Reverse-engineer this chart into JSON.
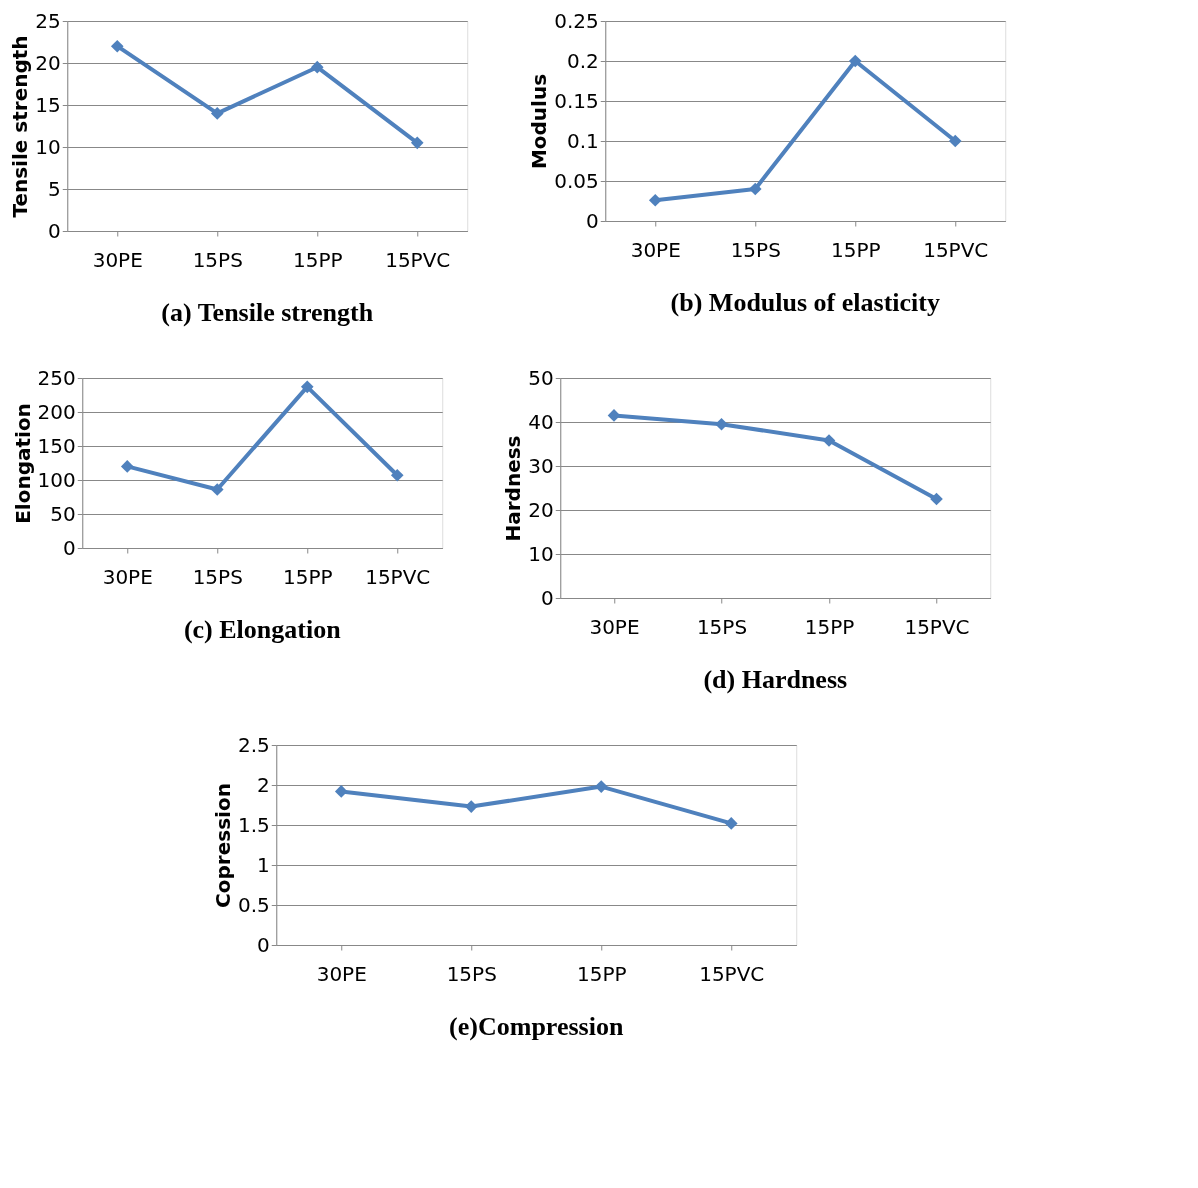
{
  "chart_data": [
    {
      "type": "line",
      "title": "(a) Tensile strength",
      "ylabel": "Tensile strength",
      "categories": [
        "30PE",
        "15PS",
        "15PP",
        "15PVC"
      ],
      "series": [
        {
          "color": "#4f81bd",
          "values": [
            22,
            14,
            19.5,
            10.5
          ]
        }
      ],
      "ylim": [
        0,
        25
      ],
      "yticks": [
        0,
        5,
        10,
        15,
        20,
        25
      ],
      "grid": "y",
      "marker": "diamond"
    },
    {
      "type": "line",
      "title": "(b) Modulus of elasticity",
      "ylabel": "Modulus",
      "categories": [
        "30PE",
        "15PS",
        "15PP",
        "15PVC"
      ],
      "series": [
        {
          "color": "#4f81bd",
          "values": [
            0.026,
            0.04,
            0.2,
            0.1
          ]
        }
      ],
      "ylim": [
        0,
        0.25
      ],
      "yticks": [
        0,
        0.05,
        0.1,
        0.15,
        0.2,
        0.25
      ],
      "grid": "y",
      "marker": "diamond"
    },
    {
      "type": "line",
      "title": "(c) Elongation",
      "ylabel": "Elongation",
      "categories": [
        "30PE",
        "15PS",
        "15PP",
        "15PVC"
      ],
      "series": [
        {
          "color": "#4f81bd",
          "values": [
            120,
            86,
            237,
            107
          ]
        }
      ],
      "ylim": [
        0,
        250
      ],
      "yticks": [
        0,
        50,
        100,
        150,
        200,
        250
      ],
      "grid": "y",
      "marker": "diamond"
    },
    {
      "type": "line",
      "title": "(d) Hardness",
      "ylabel": "Hardness",
      "categories": [
        "30PE",
        "15PS",
        "15PP",
        "15PVC"
      ],
      "series": [
        {
          "color": "#4f81bd",
          "values": [
            41.5,
            39.5,
            35.8,
            22.5
          ]
        }
      ],
      "ylim": [
        0,
        50
      ],
      "yticks": [
        0,
        10,
        20,
        30,
        40,
        50
      ],
      "grid": "y",
      "marker": "diamond"
    },
    {
      "type": "line",
      "title": "(e)Compression",
      "ylabel": "Copression",
      "categories": [
        "30PE",
        "15PS",
        "15PP",
        "15PVC"
      ],
      "series": [
        {
          "color": "#4f81bd",
          "values": [
            1.92,
            1.73,
            1.98,
            1.52
          ]
        }
      ],
      "ylim": [
        0,
        2.5
      ],
      "yticks": [
        0,
        0.5,
        1,
        1.5,
        2,
        2.5
      ],
      "grid": "y",
      "marker": "diamond"
    }
  ]
}
